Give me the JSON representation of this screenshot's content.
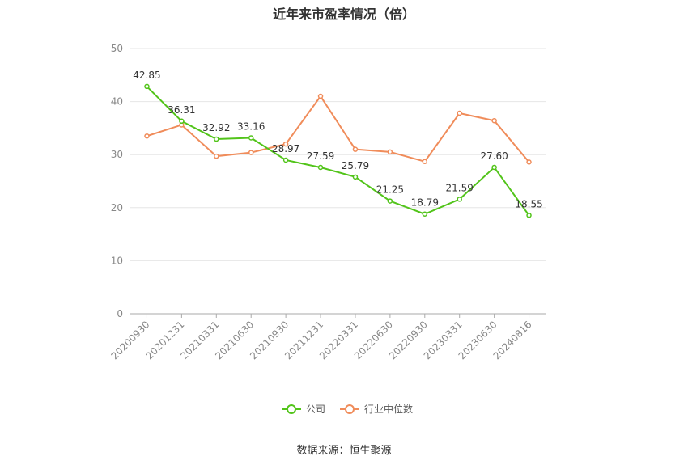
{
  "chart_data": {
    "type": "line",
    "title": "近年来市盈率情况（倍）",
    "categories": [
      "20200930",
      "20201231",
      "20210331",
      "20210630",
      "20210930",
      "20211231",
      "20220331",
      "20220630",
      "20220930",
      "20230331",
      "20230630",
      "20240816"
    ],
    "series": [
      {
        "name": "公司",
        "color": "#52c41a",
        "values": [
          42.85,
          36.31,
          32.92,
          33.16,
          28.97,
          27.59,
          25.79,
          21.25,
          18.79,
          21.59,
          27.6,
          18.55
        ],
        "labels": [
          "42.85",
          "36.31",
          "32.92",
          "33.16",
          "28.97",
          "27.59",
          "25.79",
          "21.25",
          "18.79",
          "21.59",
          "27.60",
          "18.55"
        ]
      },
      {
        "name": "行业中位数",
        "color": "#f08c5a",
        "values": [
          33.5,
          35.6,
          29.7,
          30.4,
          32.0,
          41.0,
          31.0,
          30.5,
          28.7,
          37.8,
          36.4,
          28.6
        ]
      }
    ],
    "yticks": [
      0,
      10,
      20,
      30,
      40,
      50
    ],
    "ylim": [
      0,
      50
    ],
    "grid": true,
    "legend_position": "bottom"
  },
  "source_text": "数据来源：恒生聚源"
}
